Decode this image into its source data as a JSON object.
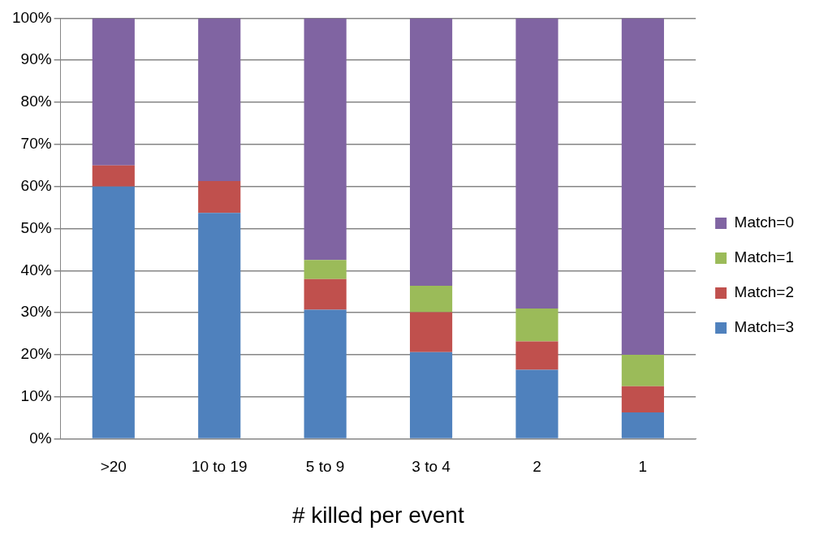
{
  "chart_data": {
    "type": "bar",
    "stacked": true,
    "xlabel": "# killed per event",
    "categories": [
      ">20",
      "10 to 19",
      "5 to 9",
      "3 to 4",
      "2",
      "1"
    ],
    "series": [
      {
        "name": "Match=3",
        "color": "#4f81bd",
        "values": [
          60,
          53.7,
          30.7,
          20.6,
          16.4,
          6.3
        ]
      },
      {
        "name": "Match=2",
        "color": "#c0504d",
        "values": [
          5,
          7.6,
          7.3,
          9.5,
          6.8,
          6.2
        ]
      },
      {
        "name": "Match=1",
        "color": "#9bbb59",
        "values": [
          0,
          0,
          4.5,
          6.3,
          7.8,
          7.5
        ]
      },
      {
        "name": "Match=0",
        "color": "#8064a2",
        "values": [
          35,
          38.7,
          57.5,
          63.6,
          69,
          80
        ]
      }
    ],
    "ylim": [
      0,
      100
    ],
    "yticks": [
      {
        "value": 0,
        "label": "0%"
      },
      {
        "value": 10,
        "label": "10%"
      },
      {
        "value": 20,
        "label": "20%"
      },
      {
        "value": 30,
        "label": "30%"
      },
      {
        "value": 40,
        "label": "40%"
      },
      {
        "value": 50,
        "label": "50%"
      },
      {
        "value": 60,
        "label": "60%"
      },
      {
        "value": 70,
        "label": "70%"
      },
      {
        "value": 80,
        "label": "80%"
      },
      {
        "value": 90,
        "label": "90%"
      },
      {
        "value": 100,
        "label": "100%"
      }
    ],
    "grid": "y",
    "legend": "right"
  }
}
